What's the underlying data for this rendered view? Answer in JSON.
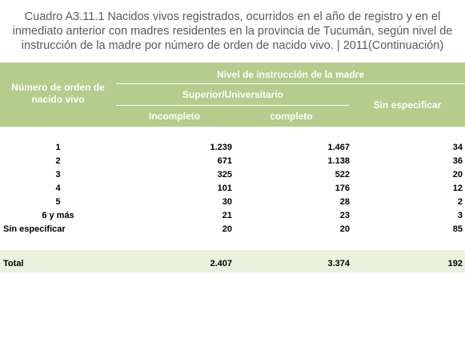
{
  "header": {
    "title": "Cuadro A3.11.1 Nacidos vivos registrados, ocurridos en el año de registro y en el inmediato anterior con madres residentes en la provincia de Tucumán, según nivel de instrucción de la madre por número de orden de nacido vivo. |  2011(Continuación)"
  },
  "table": {
    "row_header": "Número de orden de nacido vivo",
    "group": "Nivel de instrucción de la madre",
    "subgroup": "Superior/Universitario",
    "subcolumns": [
      "Incompleto",
      "completo"
    ],
    "last_column": "Sin especificar",
    "rows": [
      [
        "1",
        "1.239",
        "1.467",
        "34"
      ],
      [
        "2",
        "671",
        "1.138",
        "36"
      ],
      [
        "3",
        "325",
        "522",
        "20"
      ],
      [
        "4",
        "101",
        "176",
        "12"
      ],
      [
        "5",
        "30",
        "28",
        "2"
      ],
      [
        "6 y más",
        "21",
        "23",
        "3"
      ],
      [
        "Sin especificar",
        "20",
        "20",
        "85"
      ]
    ],
    "total": [
      "Total",
      "2.407",
      "3.374",
      "192"
    ]
  }
}
